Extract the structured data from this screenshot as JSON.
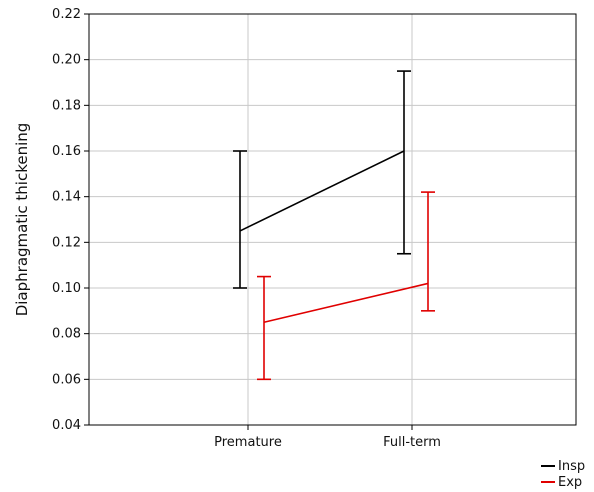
{
  "chart_data": {
    "type": "line",
    "categories": [
      "Premature",
      "Full-term"
    ],
    "xlabel": "",
    "ylabel": "Diaphragmatic thickening",
    "ylim": [
      0.04,
      0.22
    ],
    "yticks": [
      0.04,
      0.06,
      0.08,
      0.1,
      0.12,
      0.14,
      0.16,
      0.18,
      0.2,
      0.22
    ],
    "grid": true,
    "legend_position": "bottom-right",
    "series": [
      {
        "name": "Insp",
        "color": "#000000",
        "values": [
          0.125,
          0.16
        ],
        "error_low": [
          0.1,
          0.115
        ],
        "error_high": [
          0.16,
          0.195
        ]
      },
      {
        "name": "Exp",
        "color": "#e00000",
        "values": [
          0.085,
          0.102
        ],
        "error_low": [
          0.06,
          0.09
        ],
        "error_high": [
          0.105,
          0.142
        ]
      }
    ]
  }
}
